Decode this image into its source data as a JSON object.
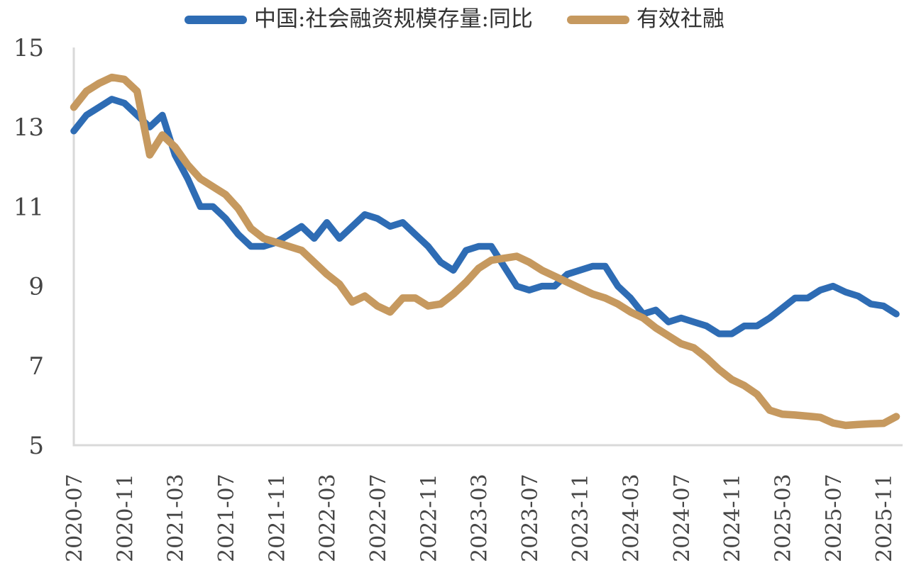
{
  "legend": {
    "items": [
      {
        "label": "中国:社会融资规模存量:同比",
        "color": "#2e6cb4"
      },
      {
        "label": "有效社融",
        "color": "#c6995f"
      }
    ]
  },
  "chart_data": {
    "type": "line",
    "title": "",
    "xlabel": "",
    "ylabel": "",
    "ylim": [
      5,
      15
    ],
    "yticks": [
      15,
      13,
      11,
      9,
      7,
      5
    ],
    "grid": false,
    "legend_position": "top-center",
    "axis_color": "#d9d9d9",
    "label_color": "#454545",
    "x": [
      "2020-07",
      "2020-08",
      "2020-09",
      "2020-10",
      "2020-11",
      "2020-12",
      "2021-01",
      "2021-02",
      "2021-03",
      "2021-04",
      "2021-05",
      "2021-06",
      "2021-07",
      "2021-08",
      "2021-09",
      "2021-10",
      "2021-11",
      "2021-12",
      "2022-01",
      "2022-02",
      "2022-03",
      "2022-04",
      "2022-05",
      "2022-06",
      "2022-07",
      "2022-08",
      "2022-09",
      "2022-10",
      "2022-11",
      "2022-12",
      "2023-01",
      "2023-02",
      "2023-03",
      "2023-04",
      "2023-05",
      "2023-06",
      "2023-07",
      "2023-08",
      "2023-09",
      "2023-10",
      "2023-11",
      "2023-12",
      "2024-01",
      "2024-02",
      "2024-03",
      "2024-04",
      "2024-05",
      "2024-06",
      "2024-07",
      "2024-08",
      "2024-09",
      "2024-10",
      "2024-11",
      "2024-12",
      "2025-01",
      "2025-02",
      "2025-03",
      "2025-04",
      "2025-05",
      "2025-06",
      "2025-07",
      "2025-08",
      "2025-09",
      "2025-10",
      "2025-11",
      "2025-12"
    ],
    "x_tick_labels": [
      "2020-07",
      "2020-11",
      "2021-03",
      "2021-07",
      "2021-11",
      "2022-03",
      "2022-07",
      "2022-11",
      "2023-03",
      "2023-07",
      "2023-11",
      "2024-03",
      "2024-07",
      "2024-11",
      "2025-03",
      "2025-07",
      "2025-11"
    ],
    "series": [
      {
        "name": "中国:社会融资规模存量:同比",
        "color": "#2e6cb4",
        "stroke_width": 9.5,
        "values": [
          12.9,
          13.3,
          13.5,
          13.7,
          13.6,
          13.3,
          13.0,
          13.3,
          12.3,
          11.7,
          11.0,
          11.0,
          10.7,
          10.3,
          10.0,
          10.0,
          10.1,
          10.3,
          10.5,
          10.2,
          10.6,
          10.2,
          10.5,
          10.8,
          10.7,
          10.5,
          10.6,
          10.3,
          10.0,
          9.6,
          9.4,
          9.9,
          10.0,
          10.0,
          9.5,
          9.0,
          8.9,
          9.0,
          9.0,
          9.3,
          9.4,
          9.5,
          9.5,
          9.0,
          8.7,
          8.3,
          8.4,
          8.1,
          8.2,
          8.1,
          8.0,
          7.8,
          7.8,
          8.0,
          8.0,
          8.2,
          8.45,
          8.7,
          8.7,
          8.9,
          9.0,
          8.85,
          8.75,
          8.55,
          8.5,
          8.3
        ]
      },
      {
        "name": "有效社融",
        "color": "#c6995f",
        "stroke_width": 10.5,
        "values": [
          13.5,
          13.9,
          14.1,
          14.25,
          14.2,
          13.9,
          12.3,
          12.8,
          12.5,
          12.05,
          11.7,
          11.5,
          11.3,
          10.95,
          10.45,
          10.2,
          10.1,
          10.0,
          9.9,
          9.6,
          9.3,
          9.05,
          8.6,
          8.75,
          8.5,
          8.35,
          8.7,
          8.7,
          8.5,
          8.55,
          8.8,
          9.1,
          9.45,
          9.65,
          9.7,
          9.75,
          9.6,
          9.4,
          9.25,
          9.1,
          8.95,
          8.8,
          8.7,
          8.55,
          8.35,
          8.2,
          7.95,
          7.75,
          7.55,
          7.45,
          7.2,
          6.9,
          6.65,
          6.5,
          6.28,
          5.88,
          5.78,
          5.76,
          5.73,
          5.7,
          5.56,
          5.5,
          5.52,
          5.54,
          5.55,
          5.72
        ]
      }
    ]
  }
}
